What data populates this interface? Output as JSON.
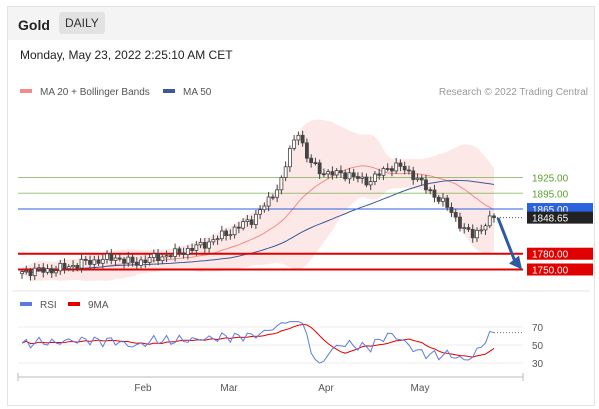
{
  "header": {
    "instrument": "Gold",
    "period_badge": "DAILY"
  },
  "timestamp": "Monday, May 23, 2022 2:25:10 AM CET",
  "colors": {
    "bollinger": "#f28b8b",
    "ma50": "#3b5a9a",
    "rsi": "#5b7be0",
    "rsi_ma": "#e00000",
    "green_level": "#5aa02c",
    "blue_level": "#2a62e0",
    "red_level": "#e00000",
    "price_tag": "#222222",
    "arrow": "#2e5aa3",
    "candle": "#444444"
  },
  "chart_data": [
    {
      "type": "candlestick",
      "legend": [
        {
          "label": "MA 20 + Bollinger Bands",
          "color": "#f28b8b"
        },
        {
          "label": "MA 50",
          "color": "#3b5a9a"
        }
      ],
      "credit": "Research © 2022 Trading Central",
      "x_ticks": [
        "Feb",
        "Mar",
        "Apr",
        "May"
      ],
      "ylim": [
        1730,
        2080
      ],
      "levels": [
        {
          "value": 1925,
          "label": "1925.00",
          "kind": "resistance"
        },
        {
          "value": 1895,
          "label": "1895.00",
          "kind": "resistance"
        },
        {
          "value": 1865,
          "label": "1865.00",
          "kind": "pivot"
        },
        {
          "value": 1780,
          "label": "1780.00",
          "kind": "support"
        },
        {
          "value": 1750,
          "label": "1750.00",
          "kind": "support"
        }
      ],
      "last_price": {
        "value": 1848.65,
        "label": "1848.65"
      },
      "projection": {
        "from": 1848,
        "to": 1750
      }
    },
    {
      "type": "line",
      "legend": [
        {
          "label": "RSI",
          "color": "#5b7be0"
        },
        {
          "label": "9MA",
          "color": "#e00000"
        }
      ],
      "ylim": [
        20,
        80
      ],
      "y_ticks": [
        70,
        50,
        30
      ]
    }
  ]
}
